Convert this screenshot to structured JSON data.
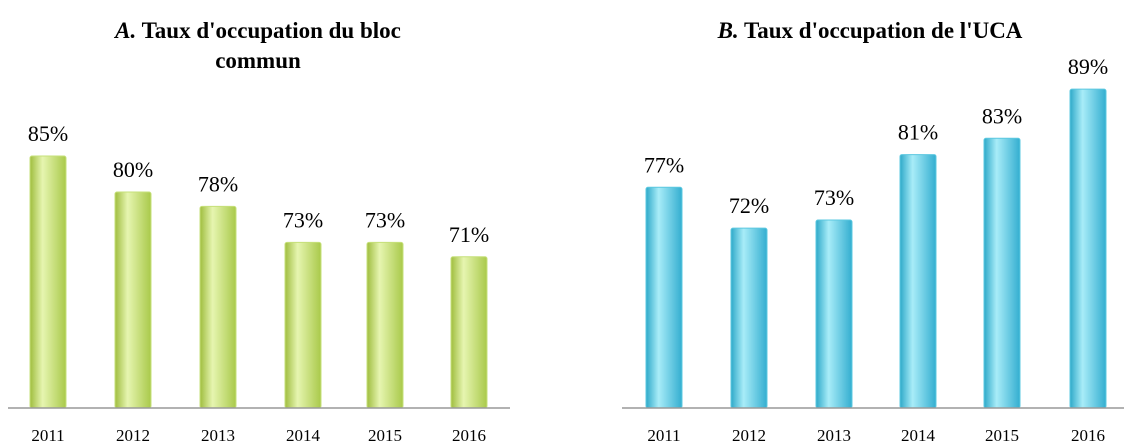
{
  "chart_data": [
    {
      "type": "bar",
      "panel_label": "A.",
      "title": "Taux d'occupation du bloc commun",
      "categories": [
        "2011",
        "2012",
        "2013",
        "2014",
        "2015",
        "2016"
      ],
      "values": [
        85,
        80,
        78,
        73,
        73,
        71
      ],
      "value_labels": [
        "85%",
        "80%",
        "78%",
        "73%",
        "73%",
        "71%"
      ],
      "color": "#c6e07a",
      "ylim": [
        50,
        90
      ]
    },
    {
      "type": "bar",
      "panel_label": "B.",
      "title": "Taux d'occupation de l'UCA",
      "categories": [
        "2011",
        "2012",
        "2013",
        "2014",
        "2015",
        "2016"
      ],
      "values": [
        77,
        72,
        73,
        81,
        83,
        89
      ],
      "value_labels": [
        "77%",
        "72%",
        "73%",
        "81%",
        "83%",
        "89%"
      ],
      "color": "#5bc8e0",
      "ylim": [
        50,
        90
      ]
    }
  ]
}
